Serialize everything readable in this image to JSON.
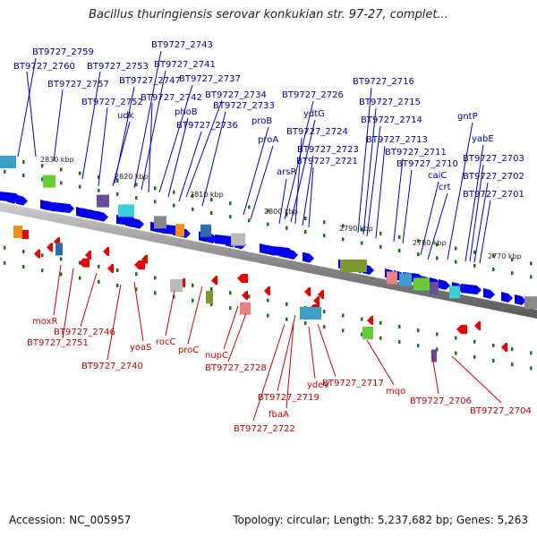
{
  "title": "Bacillus thuringiensis serovar konkukian str. 97-27, complet...",
  "accession_text": "Accession: NC_005957",
  "summary_text": "Topology: circular; Length: 5,237,682 bp; Genes: 5,263",
  "ticks": [
    "2830 kbp",
    "2820 kbp",
    "2810 kbp",
    "2800 kbp",
    "2790 kbp",
    "2780 kbp",
    "2770 kbp"
  ],
  "forward_labels": [
    "BT9727_2759",
    "BT9727_2760",
    "BT9727_2753",
    "BT9727_2757",
    "BT9727_2743",
    "BT9727_2741",
    "BT9727_2747",
    "BT9727_2737",
    "BT9727_2752",
    "BT9727_2742",
    "BT9727_2734",
    "udk",
    "phoB",
    "BT9727_2733",
    "BT9727_2736",
    "BT9727_2726",
    "proB",
    "proA",
    "ydtG",
    "BT9727_2724",
    "BT9727_2723",
    "BT9727_2721",
    "arsR",
    "BT9727_2716",
    "BT9727_2715",
    "BT9727_2714",
    "BT9727_2713",
    "BT9727_2711",
    "BT9727_2710",
    "caiC",
    "crt",
    "gntP",
    "yabE",
    "BT9727_2703",
    "BT9727_2702",
    "BT9727_2701"
  ],
  "reverse_labels": [
    "moxR",
    "BT9727_2751",
    "BT9727_2746",
    "yoaS",
    "rocC",
    "BT9727_2740",
    "proC",
    "nupC",
    "BT9727_2728",
    "BT9727_2719",
    "ydeV",
    "BT9727_2717",
    "mqo",
    "BT9727_2722",
    "fbaA",
    "BT9727_2706",
    "BT9727_2704"
  ],
  "colors": {
    "forward_gene": "#0000ee",
    "forward_label": "#000099",
    "reverse_gene": "#ee0000",
    "reverse_label": "#cc0000",
    "backbone": "#888888",
    "tick": "#117711"
  }
}
